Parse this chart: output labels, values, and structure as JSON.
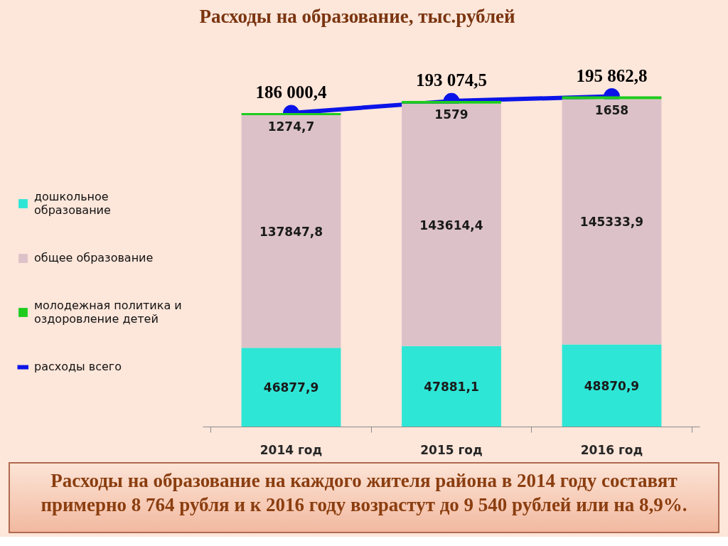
{
  "chart_data": {
    "type": "bar",
    "title": "Расходы на образование, тыс.рублей",
    "categories": [
      "2014 год",
      "2015 год",
      "2016 год"
    ],
    "stacked": true,
    "series": [
      {
        "name": "дошкольное образование",
        "color": "#2ee6d6",
        "values": [
          46877.9,
          47881.1,
          48870.9
        ],
        "value_labels": [
          "46877,9",
          "47881,1",
          "48870,9"
        ]
      },
      {
        "name": "общее образование",
        "color": "#dcc2c8",
        "values": [
          137847.8,
          143614.4,
          145333.9
        ],
        "value_labels": [
          "137847,8",
          "143614,4",
          "145333,9"
        ]
      },
      {
        "name": "молодежная политика и оздоровление детей",
        "color": "#1ecc1e",
        "values": [
          1274.7,
          1579,
          1658
        ],
        "value_labels": [
          "1274,7",
          "1579",
          "1658"
        ]
      },
      {
        "name": "расходы всего",
        "type": "line",
        "color": "#0b14e8",
        "values": [
          186000.4,
          193074.5,
          195862.8
        ],
        "value_labels": [
          "186 000,4",
          "193 074,5",
          "195 862,8"
        ]
      }
    ],
    "marker": "circle",
    "legend": "left",
    "grid": false,
    "tick_labels": "x",
    "annotations": [
      "Расходы на образование на каждого жителя района в 2014 году составят примерно 8 764 рубля и к 2016 году возрастут до 9 540 рублей или на 8,9%."
    ]
  }
}
